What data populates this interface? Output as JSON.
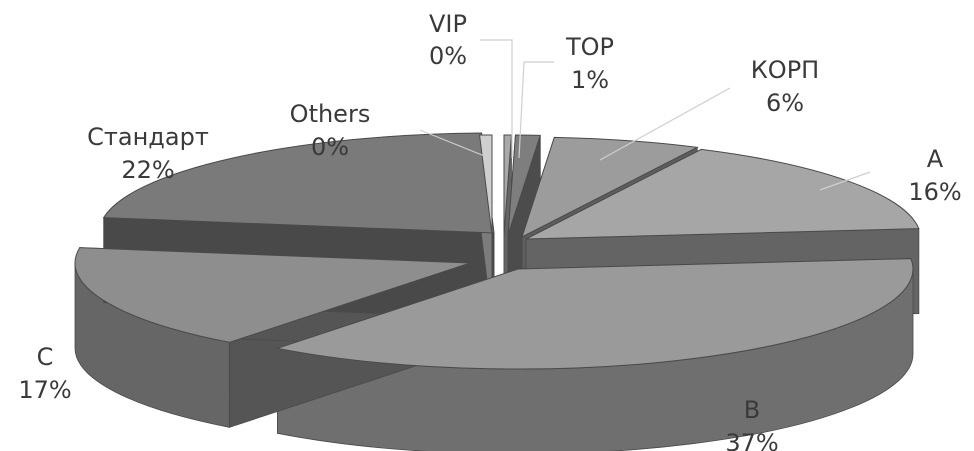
{
  "chart_data": {
    "type": "pie",
    "style": "3d-exploded",
    "slices": [
      {
        "name": "VIP",
        "pct_label": "0%",
        "value": 0.3,
        "color": "#a9a9a9"
      },
      {
        "name": "TOP",
        "pct_label": "1%",
        "value": 1,
        "color": "#7e7e7e"
      },
      {
        "name": "КОРП",
        "pct_label": "6%",
        "value": 6,
        "color": "#9c9c9c"
      },
      {
        "name": "A",
        "pct_label": "16%",
        "value": 16,
        "color": "#a6a6a6"
      },
      {
        "name": "B",
        "pct_label": "37%",
        "value": 37,
        "color": "#9a9a9a"
      },
      {
        "name": "C",
        "pct_label": "17%",
        "value": 17,
        "color": "#8e8e8e"
      },
      {
        "name": "Стандарт",
        "pct_label": "22%",
        "value": 22,
        "color": "#7a7a7a"
      },
      {
        "name": "Others",
        "pct_label": "0%",
        "value": 0.5,
        "color": "#cfcfcf"
      }
    ],
    "colors": {
      "edge": "#4a4a4a",
      "label": "#3a3a3a"
    }
  }
}
